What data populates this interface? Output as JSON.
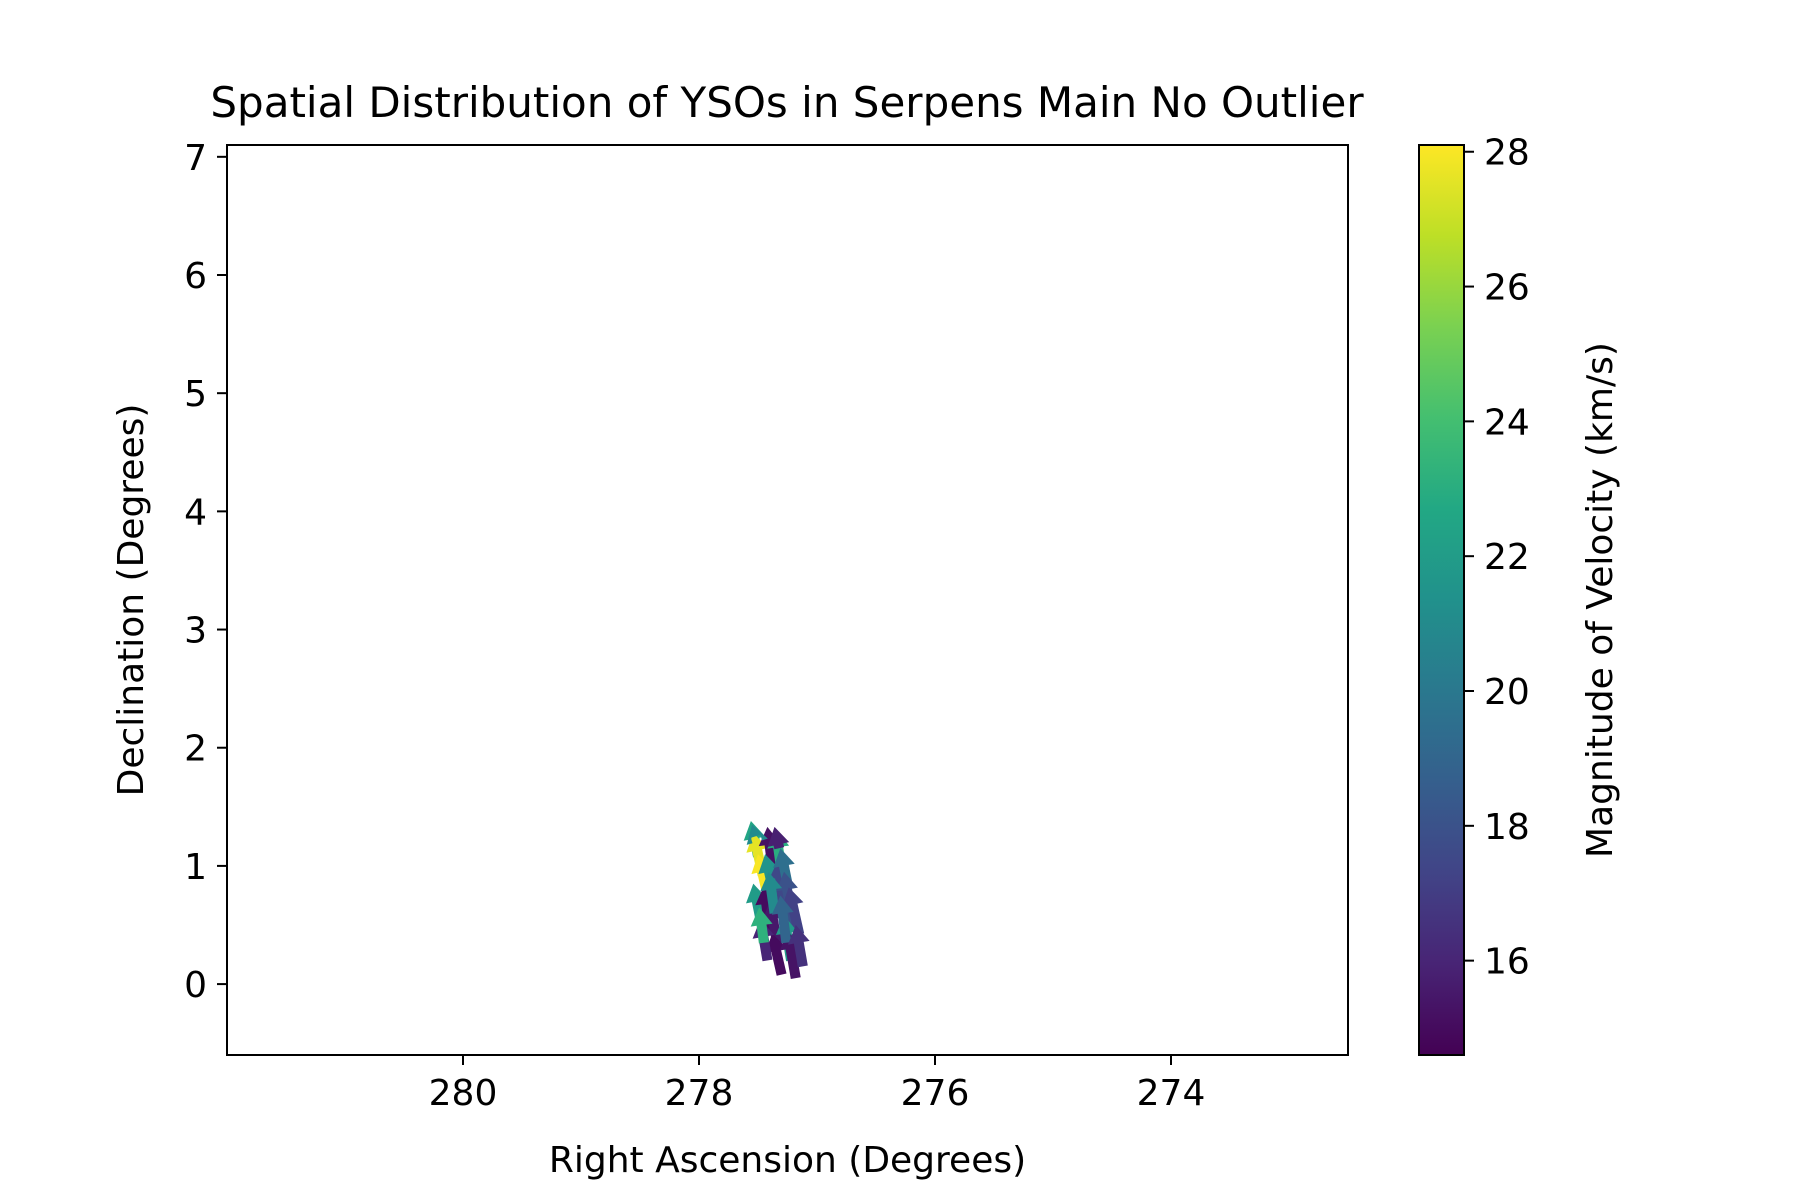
{
  "chart_data": {
    "type": "quiver",
    "title": "Spatial Distribution of YSOs in Serpens Main No Outlier",
    "xlabel": "Right Ascension (Degrees)",
    "ylabel": "Declination (Degrees)",
    "xlim": [
      282.0,
      272.5
    ],
    "ylim": [
      -0.6,
      7.1
    ],
    "x_inverted": true,
    "xticks": [
      280,
      278,
      276,
      274
    ],
    "yticks": [
      0,
      1,
      2,
      3,
      4,
      5,
      6,
      7
    ],
    "grid": false,
    "colorbar": {
      "label": "Magnitude of Velocity (km/s)",
      "colormap": "viridis",
      "range": [
        14.6,
        28.1
      ],
      "ticks": [
        16,
        18,
        20,
        22,
        24,
        26,
        28
      ]
    },
    "vectors": [
      {
        "x": 277.5,
        "y": 1.08,
        "dx": 0.06,
        "dy": 0.3,
        "v": 22.5
      },
      {
        "x": 277.46,
        "y": 0.92,
        "dx": 0.08,
        "dy": 0.36,
        "v": 27.6
      },
      {
        "x": 277.43,
        "y": 0.8,
        "dx": 0.07,
        "dy": 0.3,
        "v": 28.0
      },
      {
        "x": 277.38,
        "y": 1.0,
        "dx": 0.04,
        "dy": 0.33,
        "v": 15.2
      },
      {
        "x": 277.35,
        "y": 0.7,
        "dx": 0.09,
        "dy": 0.4,
        "v": 21.5
      },
      {
        "x": 277.3,
        "y": 0.95,
        "dx": 0.05,
        "dy": 0.36,
        "v": 23.0
      },
      {
        "x": 277.28,
        "y": 0.6,
        "dx": 0.05,
        "dy": 0.45,
        "v": 17.5
      },
      {
        "x": 277.25,
        "y": 0.85,
        "dx": 0.06,
        "dy": 0.3,
        "v": 19.5
      },
      {
        "x": 277.2,
        "y": 0.5,
        "dx": 0.08,
        "dy": 0.45,
        "v": 18.0
      },
      {
        "x": 277.15,
        "y": 0.42,
        "dx": 0.09,
        "dy": 0.4,
        "v": 17.2
      },
      {
        "x": 277.48,
        "y": 0.55,
        "dx": 0.06,
        "dy": 0.3,
        "v": 22.0
      },
      {
        "x": 277.4,
        "y": 0.45,
        "dx": 0.05,
        "dy": 0.38,
        "v": 15.0
      },
      {
        "x": 277.33,
        "y": 0.3,
        "dx": 0.07,
        "dy": 0.4,
        "v": 15.5
      },
      {
        "x": 277.22,
        "y": 0.2,
        "dx": 0.06,
        "dy": 0.38,
        "v": 21.8
      },
      {
        "x": 277.3,
        "y": 0.08,
        "dx": 0.08,
        "dy": 0.35,
        "v": 15.0
      },
      {
        "x": 277.18,
        "y": 0.05,
        "dx": 0.07,
        "dy": 0.4,
        "v": 15.3
      },
      {
        "x": 277.42,
        "y": 0.2,
        "dx": 0.06,
        "dy": 0.35,
        "v": 16.0
      },
      {
        "x": 277.36,
        "y": 0.6,
        "dx": 0.05,
        "dy": 0.35,
        "v": 21.0
      },
      {
        "x": 277.26,
        "y": 0.35,
        "dx": 0.05,
        "dy": 0.4,
        "v": 19.0
      },
      {
        "x": 277.12,
        "y": 0.15,
        "dx": 0.06,
        "dy": 0.35,
        "v": 16.5
      },
      {
        "x": 277.45,
        "y": 0.35,
        "dx": 0.04,
        "dy": 0.3,
        "v": 23.2
      },
      {
        "x": 277.32,
        "y": 1.15,
        "dx": 0.04,
        "dy": 0.18,
        "v": 15.8
      },
      {
        "x": 277.52,
        "y": 1.25,
        "dx": 0.03,
        "dy": 0.1,
        "v": 21.0
      }
    ]
  }
}
